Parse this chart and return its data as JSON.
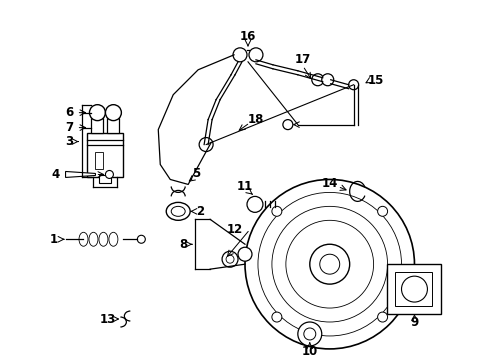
{
  "background_color": "#ffffff",
  "line_color": "#000000",
  "text_color": "#000000",
  "lw": 0.9,
  "fs": 8.5
}
